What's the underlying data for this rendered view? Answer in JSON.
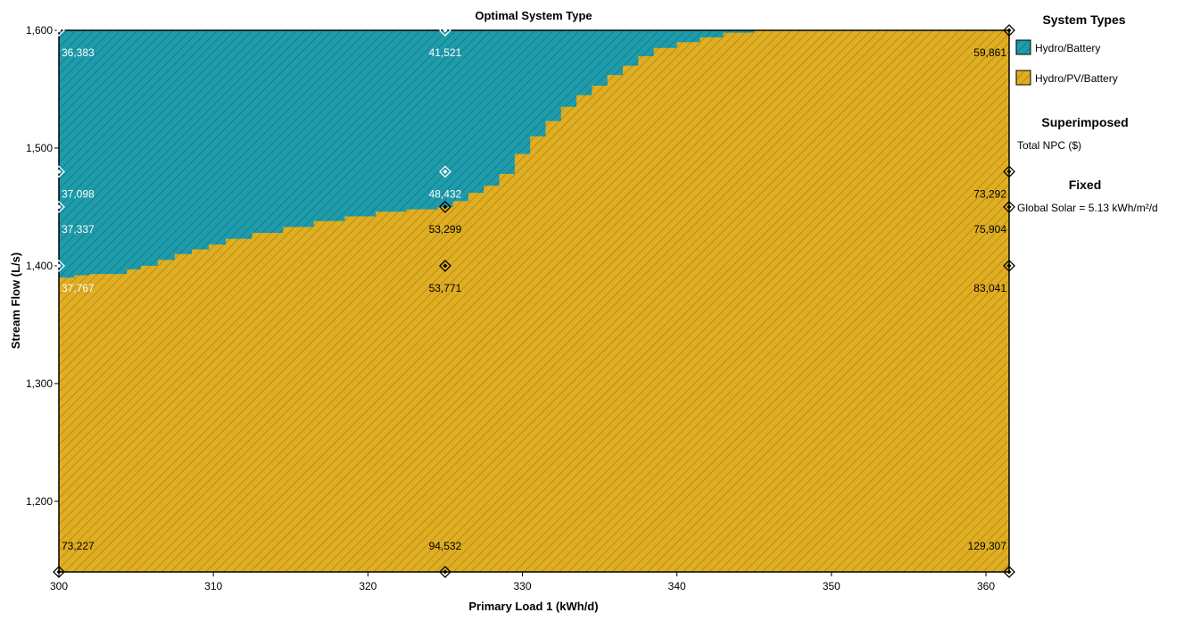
{
  "chart_data": {
    "type": "heatmap",
    "title": "Optimal System Type",
    "xlabel": "Primary Load 1 (kWh/d)",
    "ylabel": "Stream Flow (L/s)",
    "xlim": [
      300,
      361.5
    ],
    "ylim": [
      1140,
      1600
    ],
    "x_ticks": [
      "300",
      "310",
      "320",
      "330",
      "340",
      "350",
      "360"
    ],
    "x_tick_values": [
      300,
      310,
      320,
      330,
      340,
      350,
      360
    ],
    "y_ticks": [
      "1,200",
      "1,300",
      "1,400",
      "1,500",
      "1,600"
    ],
    "y_tick_values": [
      1200,
      1300,
      1400,
      1500,
      1600
    ],
    "regions": [
      {
        "name": "Hydro/Battery",
        "color": "#1E9CAB"
      },
      {
        "name": "Hydro/PV/Battery",
        "color": "#E0AE22"
      }
    ],
    "boundary": {
      "description_x_load": [
        300,
        301,
        302,
        304.4,
        305.3,
        306.4,
        307.5,
        308.6,
        309.7,
        310.8,
        312.5,
        314.5,
        316.5,
        318.5,
        320.5,
        322.5,
        324.5,
        325.5,
        326.5,
        327.5,
        328.5,
        329.5,
        330.5,
        331.5,
        332.5,
        333.5,
        334.5,
        335.5,
        336.5,
        337.5,
        338.5,
        340,
        341.5,
        343,
        345
      ],
      "stream_flow": [
        1390,
        1392,
        1393,
        1397,
        1400,
        1405,
        1410,
        1414,
        1418,
        1423,
        1428,
        1433,
        1438,
        1442,
        1446,
        1448,
        1450,
        1455,
        1462,
        1468,
        1478,
        1495,
        1510,
        1523,
        1535,
        1545,
        1553,
        1562,
        1570,
        1578,
        1585,
        1590,
        1594,
        1598,
        1600
      ]
    },
    "sensitivity_points": [
      {
        "x": 300,
        "y": 1600,
        "npc": "36,383",
        "system": "Hydro/Battery"
      },
      {
        "x": 325,
        "y": 1600,
        "npc": "41,521",
        "system": "Hydro/Battery"
      },
      {
        "x": 361.5,
        "y": 1600,
        "npc": "59,861",
        "system": "Hydro/PV/Battery"
      },
      {
        "x": 300,
        "y": 1480,
        "npc": "37,098",
        "system": "Hydro/Battery"
      },
      {
        "x": 325,
        "y": 1480,
        "npc": "48,432",
        "system": "Hydro/Battery"
      },
      {
        "x": 361.5,
        "y": 1480,
        "npc": "73,292",
        "system": "Hydro/PV/Battery"
      },
      {
        "x": 300,
        "y": 1450,
        "npc": "37,337",
        "system": "Hydro/Battery"
      },
      {
        "x": 325,
        "y": 1450,
        "npc": "53,299",
        "system": "Hydro/PV/Battery"
      },
      {
        "x": 361.5,
        "y": 1450,
        "npc": "75,904",
        "system": "Hydro/PV/Battery"
      },
      {
        "x": 300,
        "y": 1400,
        "npc": "37,767",
        "system": "Hydro/Battery"
      },
      {
        "x": 325,
        "y": 1400,
        "npc": "53,771",
        "system": "Hydro/PV/Battery"
      },
      {
        "x": 361.5,
        "y": 1400,
        "npc": "83,041",
        "system": "Hydro/PV/Battery"
      },
      {
        "x": 300,
        "y": 1140,
        "npc": "73,227",
        "system": "Hydro/PV/Battery"
      },
      {
        "x": 325,
        "y": 1140,
        "npc": "94,532",
        "system": "Hydro/PV/Battery"
      },
      {
        "x": 361.5,
        "y": 1140,
        "npc": "129,307",
        "system": "Hydro/PV/Battery"
      }
    ],
    "grid": false,
    "legend_placement": "right"
  },
  "legend": {
    "system_types_title": "System Types",
    "items": [
      {
        "label": "Hydro/Battery",
        "color": "#1E9CAB"
      },
      {
        "label": "Hydro/PV/Battery",
        "color": "#E0AE22"
      }
    ],
    "superimposed_title": "Superimposed",
    "superimposed_value": "Total NPC ($)",
    "fixed_title": "Fixed",
    "fixed_value": "Global Solar = 5.13 kWh/m²/d"
  }
}
